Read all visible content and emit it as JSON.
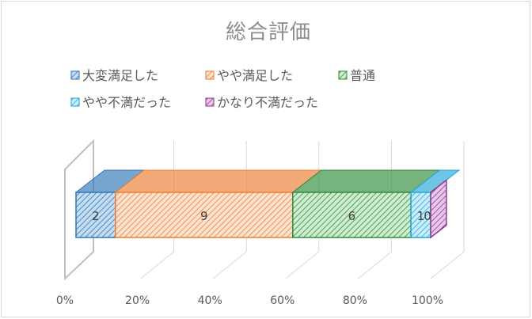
{
  "chart_data": {
    "type": "bar",
    "orientation": "horizontal",
    "stacked": "percent",
    "style": "3d",
    "title": "総合評価",
    "categories": [
      ""
    ],
    "series": [
      {
        "name": "大変満足した",
        "values": [
          2
        ]
      },
      {
        "name": "やや満足した",
        "values": [
          9
        ]
      },
      {
        "name": "普通",
        "values": [
          6
        ]
      },
      {
        "name": "やや不満だった",
        "values": [
          1
        ]
      },
      {
        "name": "かなり不満だった",
        "values": [
          0
        ]
      }
    ],
    "data_labels": [
      "2",
      "9",
      "6",
      "1",
      "0"
    ],
    "xlim": [
      0,
      100
    ],
    "x_ticks": [
      "0%",
      "20%",
      "40%",
      "60%",
      "80%",
      "100%"
    ],
    "legend_position": "top",
    "grid": true,
    "colors": [
      "#2e75b6",
      "#ed7d31",
      "#2e8b3a",
      "#21a6d8",
      "#8b3a8f"
    ]
  }
}
